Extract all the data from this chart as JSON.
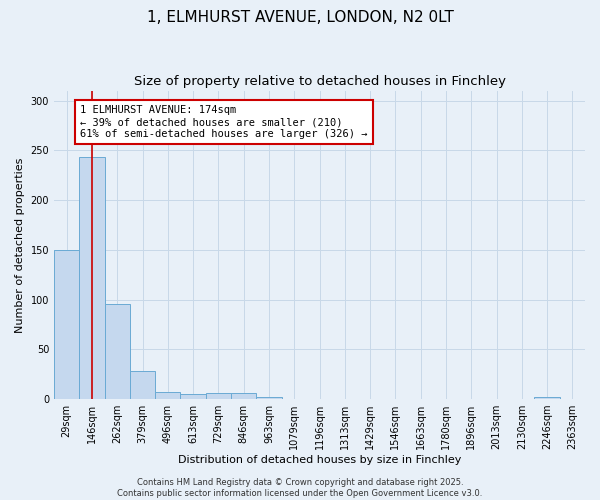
{
  "title": "1, ELMHURST AVENUE, LONDON, N2 0LT",
  "subtitle": "Size of property relative to detached houses in Finchley",
  "xlabel": "Distribution of detached houses by size in Finchley",
  "ylabel": "Number of detached properties",
  "bin_labels": [
    "29sqm",
    "146sqm",
    "262sqm",
    "379sqm",
    "496sqm",
    "613sqm",
    "729sqm",
    "846sqm",
    "963sqm",
    "1079sqm",
    "1196sqm",
    "1313sqm",
    "1429sqm",
    "1546sqm",
    "1663sqm",
    "1780sqm",
    "1896sqm",
    "2013sqm",
    "2130sqm",
    "2246sqm",
    "2363sqm"
  ],
  "bar_heights": [
    150,
    243,
    96,
    28,
    7,
    5,
    6,
    6,
    2,
    0,
    0,
    0,
    0,
    0,
    0,
    0,
    0,
    0,
    0,
    2,
    0
  ],
  "bar_color": "#c5d8ee",
  "bar_edge_color": "#6aaad4",
  "grid_color": "#c8d8e8",
  "bg_color": "#e8f0f8",
  "vline_x": 1.0,
  "annotation_text": "1 ELMHURST AVENUE: 174sqm\n← 39% of detached houses are smaller (210)\n61% of semi-detached houses are larger (326) →",
  "annotation_box_color": "#ffffff",
  "annotation_box_edge_color": "#cc0000",
  "vline_color": "#cc0000",
  "ylim": [
    0,
    310
  ],
  "yticks": [
    0,
    50,
    100,
    150,
    200,
    250,
    300
  ],
  "footer_text": "Contains HM Land Registry data © Crown copyright and database right 2025.\nContains public sector information licensed under the Open Government Licence v3.0.",
  "title_fontsize": 11,
  "subtitle_fontsize": 9.5,
  "annotation_fontsize": 7.5,
  "axis_label_fontsize": 8,
  "tick_fontsize": 7
}
